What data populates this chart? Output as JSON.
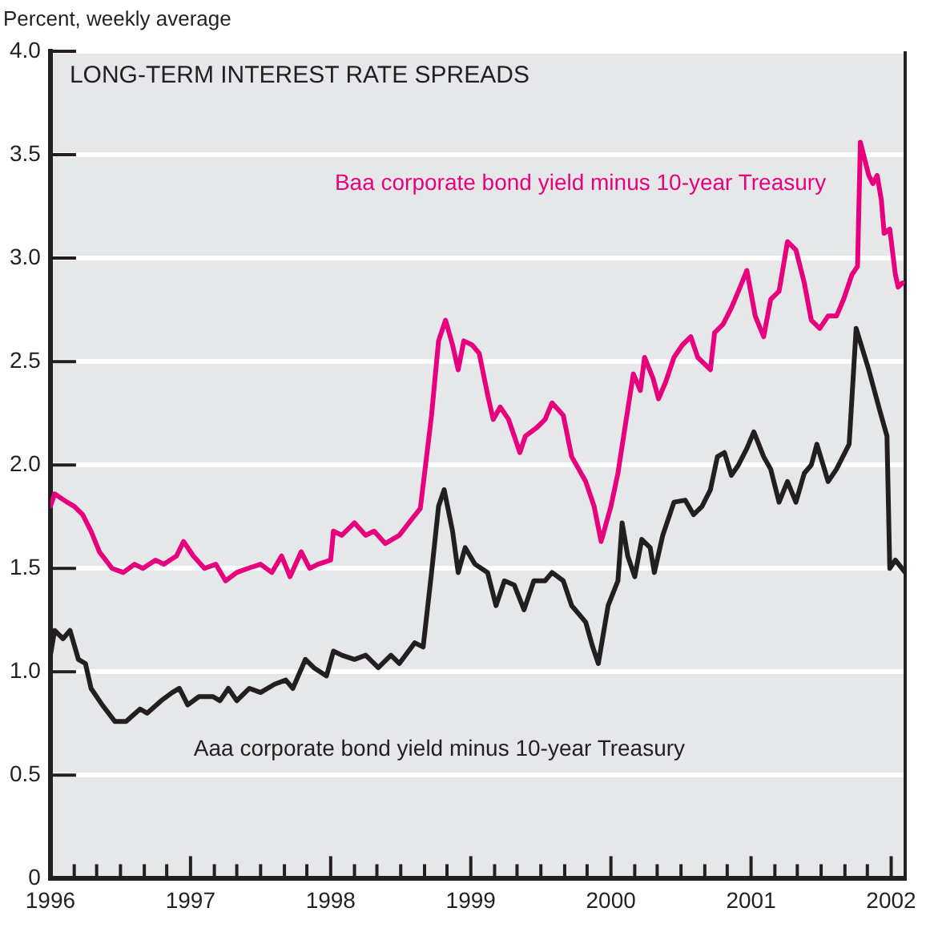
{
  "chart_data": {
    "type": "line",
    "title": "LONG-TERM INTEREST RATE SPREADS",
    "ylabel": "Percent, weekly average",
    "xlim": [
      1996,
      2002.1
    ],
    "xticks": [
      1996,
      {
        "value": 1996.17,
        "label": null
      },
      {
        "value": 1996.33,
        "label": null
      },
      {
        "value": 1996.5,
        "label": null
      },
      {
        "value": 1996.67,
        "label": null
      },
      {
        "value": 1996.83,
        "label": null
      },
      1997,
      {
        "value": 1997.17,
        "label": null
      },
      {
        "value": 1997.33,
        "label": null
      },
      {
        "value": 1997.5,
        "label": null
      },
      {
        "value": 1997.67,
        "label": null
      },
      {
        "value": 1997.83,
        "label": null
      },
      1998,
      {
        "value": 1998.17,
        "label": null
      },
      {
        "value": 1998.33,
        "label": null
      },
      {
        "value": 1998.5,
        "label": null
      },
      {
        "value": 1998.67,
        "label": null
      },
      {
        "value": 1998.83,
        "label": null
      },
      1999,
      {
        "value": 1999.17,
        "label": null
      },
      {
        "value": 1999.33,
        "label": null
      },
      {
        "value": 1999.5,
        "label": null
      },
      {
        "value": 1999.67,
        "label": null
      },
      {
        "value": 1999.83,
        "label": null
      },
      2000,
      {
        "value": 2000.17,
        "label": null
      },
      {
        "value": 2000.33,
        "label": null
      },
      {
        "value": 2000.5,
        "label": null
      },
      {
        "value": 2000.67,
        "label": null
      },
      {
        "value": 2000.83,
        "label": null
      },
      2001,
      {
        "value": 2001.17,
        "label": null
      },
      {
        "value": 2001.33,
        "label": null
      },
      {
        "value": 2001.5,
        "label": null
      },
      {
        "value": 2001.67,
        "label": null
      },
      {
        "value": 2001.83,
        "label": null
      },
      2002
    ],
    "ylim": [
      0,
      4
    ],
    "yticks": [
      0,
      0.5,
      {
        "value": 1,
        "label": "1.0"
      },
      1.5,
      {
        "value": 2,
        "label": "2.0"
      },
      2.5,
      {
        "value": 3,
        "label": "3.0"
      },
      3.5,
      {
        "value": 4,
        "label": "4.0"
      }
    ],
    "grid": "y",
    "series": [
      {
        "name": "Baa corporate bond yield minus 10-year Treasury",
        "color": "#e6007e",
        "x": [
          1996.0,
          1996.03,
          1996.12,
          1996.17,
          1996.23,
          1996.29,
          1996.35,
          1996.44,
          1996.52,
          1996.6,
          1996.66,
          1996.75,
          1996.81,
          1996.9,
          1996.95,
          1997.02,
          1997.1,
          1997.18,
          1997.25,
          1997.33,
          1997.41,
          1997.5,
          1997.58,
          1997.65,
          1997.71,
          1997.79,
          1997.85,
          1997.91,
          1998.0,
          1998.02,
          1998.08,
          1998.17,
          1998.25,
          1998.31,
          1998.39,
          1998.49,
          1998.57,
          1998.64,
          1998.72,
          1998.77,
          1998.82,
          1998.87,
          1998.91,
          1998.95,
          1999.01,
          1999.06,
          1999.12,
          1999.16,
          1999.21,
          1999.27,
          1999.35,
          1999.39,
          1999.47,
          1999.53,
          1999.58,
          1999.66,
          1999.72,
          1999.82,
          1999.88,
          1999.93,
          2000.0,
          2000.05,
          2000.1,
          2000.16,
          2000.21,
          2000.24,
          2000.3,
          2000.34,
          2000.39,
          2000.45,
          2000.51,
          2000.57,
          2000.62,
          2000.71,
          2000.74,
          2000.8,
          2000.86,
          2000.91,
          2000.97,
          2001.03,
          2001.09,
          2001.14,
          2001.2,
          2001.26,
          2001.32,
          2001.38,
          2001.43,
          2001.49,
          2001.55,
          2001.61,
          2001.66,
          2001.72,
          2001.76,
          2001.78,
          2001.84,
          2001.87,
          2001.9,
          2001.93,
          2001.95,
          2001.99,
          2002.03,
          2002.05,
          2002.08
        ],
        "values": [
          1.8,
          1.86,
          1.82,
          1.8,
          1.76,
          1.68,
          1.58,
          1.5,
          1.48,
          1.52,
          1.5,
          1.54,
          1.52,
          1.56,
          1.63,
          1.56,
          1.5,
          1.52,
          1.44,
          1.48,
          1.5,
          1.52,
          1.48,
          1.56,
          1.46,
          1.58,
          1.5,
          1.52,
          1.54,
          1.68,
          1.66,
          1.72,
          1.66,
          1.68,
          1.62,
          1.66,
          1.73,
          1.79,
          2.24,
          2.6,
          2.7,
          2.58,
          2.46,
          2.6,
          2.58,
          2.54,
          2.34,
          2.22,
          2.28,
          2.22,
          2.06,
          2.14,
          2.18,
          2.22,
          2.3,
          2.24,
          2.04,
          1.92,
          1.8,
          1.63,
          1.8,
          1.96,
          2.18,
          2.44,
          2.36,
          2.52,
          2.42,
          2.32,
          2.4,
          2.52,
          2.58,
          2.62,
          2.52,
          2.46,
          2.64,
          2.68,
          2.76,
          2.84,
          2.94,
          2.72,
          2.62,
          2.8,
          2.84,
          3.08,
          3.04,
          2.88,
          2.7,
          2.66,
          2.72,
          2.72,
          2.8,
          2.92,
          2.96,
          3.56,
          3.4,
          3.36,
          3.4,
          3.28,
          3.12,
          3.14,
          2.92,
          2.86,
          2.88
        ]
      },
      {
        "name": "Aaa corporate bond yield minus 10-year Treasury",
        "color": "#231f20",
        "x": [
          1996.0,
          1996.03,
          1996.09,
          1996.14,
          1996.2,
          1996.25,
          1996.29,
          1996.37,
          1996.46,
          1996.54,
          1996.64,
          1996.69,
          1996.79,
          1996.87,
          1996.92,
          1996.98,
          1997.06,
          1997.16,
          1997.21,
          1997.27,
          1997.33,
          1997.42,
          1997.5,
          1997.6,
          1997.68,
          1997.73,
          1997.82,
          1997.88,
          1997.97,
          1998.02,
          1998.08,
          1998.17,
          1998.25,
          1998.34,
          1998.43,
          1998.49,
          1998.6,
          1998.66,
          1998.72,
          1998.77,
          1998.81,
          1998.87,
          1998.91,
          1998.96,
          1999.03,
          1999.12,
          1999.18,
          1999.24,
          1999.31,
          1999.38,
          1999.45,
          1999.53,
          1999.58,
          1999.66,
          1999.72,
          1999.82,
          1999.87,
          1999.91,
          1999.98,
          2000.05,
          2000.08,
          2000.12,
          2000.17,
          2000.22,
          2000.28,
          2000.31,
          2000.37,
          2000.45,
          2000.53,
          2000.59,
          2000.65,
          2000.71,
          2000.76,
          2000.81,
          2000.86,
          2000.91,
          2000.97,
          2001.02,
          2001.09,
          2001.14,
          2001.2,
          2001.26,
          2001.32,
          2001.38,
          2001.43,
          2001.47,
          2001.55,
          2001.61,
          2001.7,
          2001.75,
          2001.84,
          2001.92,
          2001.97,
          2001.99,
          2002.03,
          2002.1
        ],
        "values": [
          1.08,
          1.2,
          1.16,
          1.2,
          1.06,
          1.04,
          0.92,
          0.84,
          0.76,
          0.76,
          0.82,
          0.8,
          0.86,
          0.9,
          0.92,
          0.84,
          0.88,
          0.88,
          0.86,
          0.92,
          0.86,
          0.92,
          0.9,
          0.94,
          0.96,
          0.92,
          1.06,
          1.02,
          0.98,
          1.1,
          1.08,
          1.06,
          1.08,
          1.02,
          1.08,
          1.04,
          1.14,
          1.12,
          1.48,
          1.8,
          1.88,
          1.68,
          1.48,
          1.6,
          1.52,
          1.48,
          1.32,
          1.44,
          1.42,
          1.3,
          1.44,
          1.44,
          1.48,
          1.44,
          1.32,
          1.24,
          1.12,
          1.04,
          1.32,
          1.44,
          1.72,
          1.56,
          1.46,
          1.64,
          1.6,
          1.48,
          1.66,
          1.82,
          1.83,
          1.76,
          1.8,
          1.88,
          2.04,
          2.06,
          1.95,
          2.0,
          2.08,
          2.16,
          2.04,
          1.98,
          1.82,
          1.92,
          1.82,
          1.96,
          2.0,
          2.1,
          1.92,
          1.98,
          2.1,
          2.66,
          2.46,
          2.26,
          2.14,
          1.5,
          1.54,
          1.48
        ]
      }
    ]
  }
}
